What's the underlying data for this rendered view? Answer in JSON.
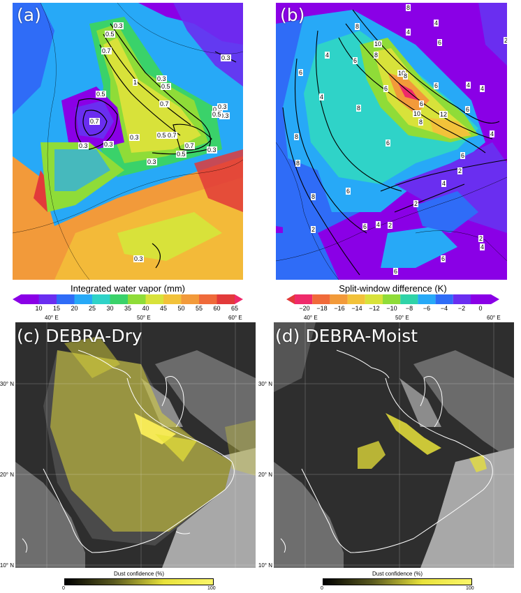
{
  "panels": {
    "a": {
      "label": "(a)"
    },
    "b": {
      "label": "(b)"
    },
    "c": {
      "label": "(c) DEBRA-Dry"
    },
    "d": {
      "label": "(d) DEBRA-Moist"
    }
  },
  "colorbar_iwv": {
    "title": "Integrated water vapor (mm)",
    "ticks": [
      "10",
      "15",
      "20",
      "25",
      "30",
      "35",
      "40",
      "45",
      "50",
      "55",
      "60",
      "65"
    ]
  },
  "colorbar_swd": {
    "title": "Split-window difference (K)",
    "ticks": [
      "−20",
      "−18",
      "−16",
      "−14",
      "−12",
      "−10",
      "−8",
      "−6",
      "−4",
      "−2",
      "0"
    ]
  },
  "contour_labels_a": [
    "0.3",
    "0.5",
    "0.7",
    "0.3",
    "0.3",
    "0.5",
    "0.7",
    "0.5",
    "0.5",
    "0.7",
    "0.3",
    "0.3",
    "0.5",
    "0.5",
    "0.7",
    "0.3",
    "0.5",
    "0.3",
    "0.7",
    "1",
    "0.3",
    "0.3",
    "0.3",
    "0.3"
  ],
  "contour_labels_b": [
    "8",
    "4",
    "8",
    "6",
    "10",
    "8",
    "4",
    "4",
    "2",
    "6",
    "6",
    "10",
    "8",
    "6",
    "6",
    "4",
    "4",
    "8",
    "6",
    "4",
    "12",
    "6",
    "10",
    "8",
    "4",
    "8",
    "6",
    "8",
    "6",
    "2",
    "4",
    "2",
    "6",
    "8",
    "2",
    "4",
    "2",
    "6",
    "2",
    "4",
    "6",
    "6"
  ],
  "lon_labels": {
    "c": [
      "40° E",
      "50° E",
      "60° E"
    ],
    "d": [
      "40° E",
      "50° E",
      "60° E"
    ]
  },
  "lat_labels": {
    "c": [
      "30° N",
      "20° N",
      "10° N"
    ],
    "d": [
      "30° N",
      "20° N",
      "10° N"
    ]
  },
  "dust_colorbar": {
    "title": "Dust confidence (%)",
    "min": "0",
    "max": "100"
  },
  "colors": {
    "iwv": [
      "#8a00e6",
      "#6a2ef0",
      "#2f6cf7",
      "#27a9f7",
      "#2fd3c8",
      "#3ad26a",
      "#8fdc38",
      "#d8e23a",
      "#f2c23a",
      "#f29a3a",
      "#ef6a3a",
      "#e23a3a"
    ],
    "swd": [
      "#ef2a6a",
      "#f06a3a",
      "#f29a3a",
      "#f2c23a",
      "#d8e23a",
      "#8fdc38",
      "#2fd3a8",
      "#27a9f7",
      "#2f6cf7",
      "#6a2ef0",
      "#8a00e6"
    ],
    "dust": "#e8e23a"
  }
}
